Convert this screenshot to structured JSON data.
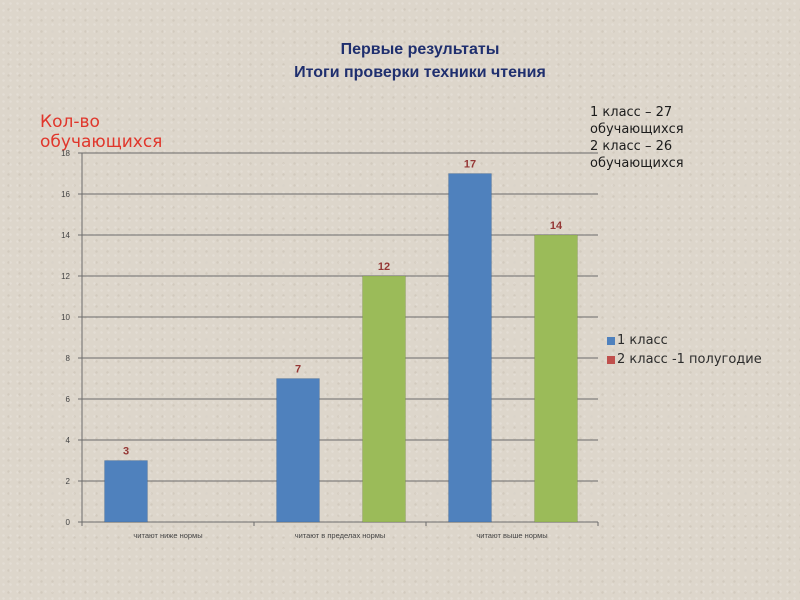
{
  "title_line1": "Первые результаты",
  "title_line2": "Итоги проверки техники чтения",
  "note": {
    "line1": "1 класс – 27",
    "line2": "обучающихся",
    "line3": "2 класс – 26",
    "line4": "обучающихся"
  },
  "colors": {
    "series1": "#4f81bd",
    "series2": "#9bbb59",
    "legend_series2": "#c0504d",
    "data_label": "#953735",
    "ylabel": "#e0362b",
    "title": "#1f2f6e"
  },
  "chart_data": {
    "type": "bar",
    "title": "Первые результаты / Итоги проверки техники чтения",
    "ylabel": "Кол-во обучающихся",
    "xlabel": "",
    "categories": [
      "читают ниже нормы",
      "читают в пределах нормы",
      "читают выше нормы"
    ],
    "series": [
      {
        "name": "1 класс",
        "values": [
          3,
          7,
          17
        ]
      },
      {
        "name": "2 класс -1 полугодие",
        "values": [
          null,
          12,
          14
        ]
      }
    ],
    "ylim": [
      0,
      18
    ],
    "yticks": [
      "0",
      "2",
      "4",
      "6",
      "8",
      "10",
      "12",
      "14",
      "16",
      "18"
    ],
    "grid": true,
    "legend": "right"
  }
}
